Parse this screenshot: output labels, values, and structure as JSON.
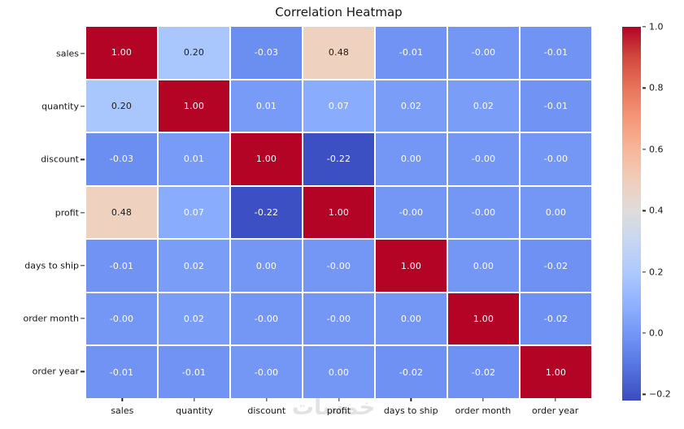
{
  "figure": {
    "title": "Correlation Heatmap",
    "watermark": "خمسات"
  },
  "chart_data": {
    "type": "heatmap",
    "title": "Correlation Heatmap",
    "colormap": "coolwarm",
    "vmin": -0.22,
    "vmax": 1.0,
    "legend_position": "right",
    "grid": false,
    "categories": [
      "sales",
      "quantity",
      "discount",
      "profit",
      "days to ship",
      "order month",
      "order year"
    ],
    "matrix": [
      [
        "1.00",
        "0.20",
        "-0.03",
        "0.48",
        "-0.01",
        "-0.00",
        "-0.01"
      ],
      [
        "0.20",
        "1.00",
        "0.01",
        "0.07",
        "0.02",
        "0.02",
        "-0.01"
      ],
      [
        "-0.03",
        "0.01",
        "1.00",
        "-0.22",
        "0.00",
        "-0.00",
        "-0.00"
      ],
      [
        "0.48",
        "0.07",
        "-0.22",
        "1.00",
        "-0.00",
        "-0.00",
        "0.00"
      ],
      [
        "-0.01",
        "0.02",
        "0.00",
        "-0.00",
        "1.00",
        "0.00",
        "-0.02"
      ],
      [
        "-0.00",
        "0.02",
        "-0.00",
        "-0.00",
        "0.00",
        "1.00",
        "-0.02"
      ],
      [
        "-0.01",
        "-0.01",
        "-0.00",
        "0.00",
        "-0.02",
        "-0.02",
        "1.00"
      ]
    ],
    "value_colors": {
      "1.00": "#b40426",
      "0.48": "#eed1be",
      "0.20": "#aac7fd",
      "0.07": "#8aacfd",
      "0.02": "#7a9df8",
      "0.01": "#789bf7",
      "0.00": "#7497f6",
      "-0.00": "#7497f6",
      "-0.01": "#7194f4",
      "-0.02": "#6e91f3",
      "-0.03": "#6b8ef1",
      "-0.22": "#3d50c3"
    },
    "dark_text_values": [
      "0.20",
      "0.48"
    ],
    "annotation_text_colors": {
      "dark": "#1d1d1d",
      "light": "#ffffff"
    },
    "colorbar_tick_labels": [
      "1.0",
      "0.8",
      "0.6",
      "0.4",
      "0.2",
      "0.0",
      "−0.2"
    ],
    "colorbar_tick_values": [
      1.0,
      0.8,
      0.6,
      0.4,
      0.2,
      0.0,
      -0.2
    ]
  }
}
